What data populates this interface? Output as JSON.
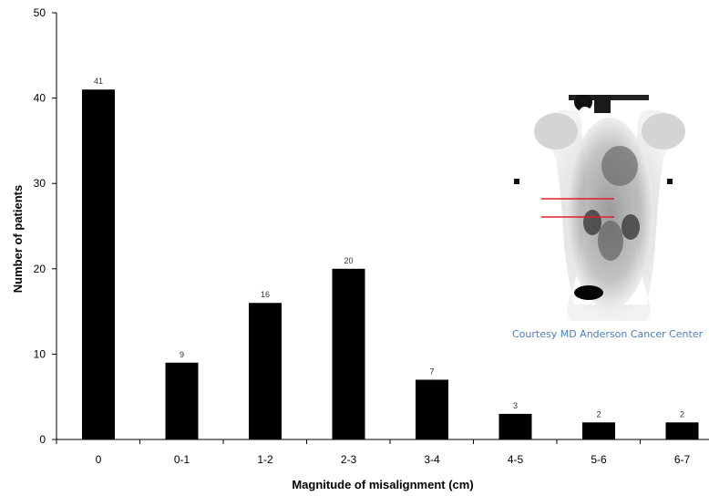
{
  "chart_data": {
    "type": "bar",
    "title": "",
    "xlabel": "Magnitude of misalignment (cm)",
    "ylabel": "Number of patients",
    "categories": [
      "0",
      "0-1",
      "1-2",
      "2-3",
      "3-4",
      "4-5",
      "5-6",
      "6-7"
    ],
    "values": [
      41,
      9,
      16,
      20,
      7,
      3,
      2,
      2
    ],
    "data_labels": [
      "41",
      "9",
      "16",
      "20",
      "7",
      "3",
      "2",
      "2"
    ],
    "ylim": [
      0,
      50
    ],
    "yticks": [
      0,
      10,
      20,
      30,
      40,
      50
    ],
    "grid": false,
    "legend": "none",
    "bar_color": "#000000"
  },
  "inset": {
    "caption": "Courtesy MD Anderson Cancer Center",
    "caption_color": "#4a7fc0",
    "line_color": "#e02020"
  }
}
